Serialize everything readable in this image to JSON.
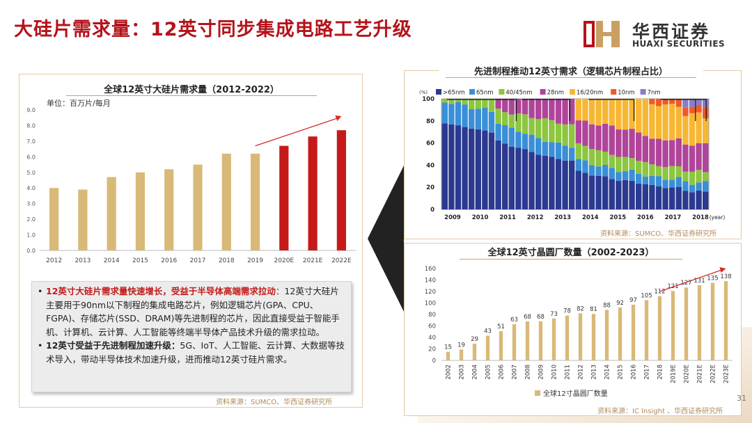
{
  "slide": {
    "title": "大硅片需求量：12英寸同步集成电路工艺升级",
    "page_number": "31"
  },
  "logo": {
    "cn": "华西证券",
    "en": "HUAXI SECURITIES",
    "mark": "华西证券 logo mark"
  },
  "colors": {
    "accent_red": "#b5121b",
    "bar_gold": "#d9b978",
    "bar_red": "#c61a1a",
    "arrow_red": "#d42b2b"
  },
  "left_panel": {
    "title": "全球12英寸大硅片需求量（2012-2022）",
    "source": "资料来源：SUMCO、华西证券研究所"
  },
  "textbox": {
    "b1_red": "12英寸大硅片需求量快速增长，受益于半导体高端需求拉动",
    "b1_red2": "：",
    "b1_text": "12英寸大硅片主要用于90nm以下制程的集成电路芯片，例如逻辑芯片(GPA、CPU、FGPA)、存储芯片(SSD、DRAM)等先进制程的芯片，因此直接受益于智能手机、计算机、云计算、人工智能等终端半导体产品技术升级的需求拉动。",
    "b2_bold": "12英寸受益于先进制程加速升级：",
    "b2_text": "5G、IoT、人工智能、云计算、大数据等技术导入，带动半导体技术加速升级，进而推动12英寸硅片需求。"
  },
  "top_right_panel": {
    "title": "先进制程推动12英寸需求（逻辑芯片制程占比）",
    "source": "资料来源：SUMCO、华西证券研究所"
  },
  "bottom_right_panel": {
    "title": "全球12英寸晶圆厂数量（2002-2023）",
    "source": "资料来源：IC Insight 、华西证券研究所"
  },
  "chart_data": [
    {
      "type": "bar",
      "unit_label": "单位：百万片/每月",
      "categories": [
        "2012",
        "2013",
        "2014",
        "2015",
        "2016",
        "2017",
        "2018",
        "2019",
        "2020E",
        "2021E",
        "2022E"
      ],
      "values": [
        4.0,
        3.9,
        4.7,
        5.0,
        5.2,
        5.5,
        6.2,
        6.2,
        6.7,
        7.3,
        7.7
      ],
      "forecast_from_index": 8,
      "ylim": [
        0,
        9
      ],
      "yticks": [
        "0.0",
        "1.0",
        "2.0",
        "3.0",
        "4.0",
        "5.0",
        "6.0",
        "7.0",
        "8.0",
        "9.0"
      ],
      "grid": false,
      "trend_arrow": true
    },
    {
      "type": "bar",
      "stacked": true,
      "percent": true,
      "y_unit": "(%)",
      "x_unit": "(year)",
      "ylim": [
        0,
        100
      ],
      "yticks": [
        "0",
        "20",
        "40",
        "60",
        "80",
        "100"
      ],
      "xticks": [
        "2009",
        "2010",
        "2011",
        "2012",
        "2013",
        "2014",
        "2015",
        "2016",
        "2017",
        "2018"
      ],
      "legend_position": "top",
      "series": [
        {
          "name": ">65nm",
          "color": "#2b3990",
          "start": 78,
          "end": 15
        },
        {
          "name": "65nm",
          "color": "#3a8fd8",
          "start": 20,
          "end": 8
        },
        {
          "name": "40/45nm",
          "color": "#8dc63f",
          "start": 2,
          "peak": 22,
          "end": 10
        },
        {
          "name": "28nm",
          "color": "#b0449a",
          "start": 0,
          "peak": 35,
          "end": 25
        },
        {
          "name": "16/20nm",
          "color": "#f7b733",
          "start": 0,
          "peak": 42,
          "end": 25
        },
        {
          "name": "10nm",
          "color": "#ef5a28",
          "start": 0,
          "end": 8
        },
        {
          "name": "7nm",
          "color": "#8b7cc8",
          "start": 0,
          "end": 8
        }
      ]
    },
    {
      "type": "bar",
      "legend": [
        "全球12寸晶圆厂数量"
      ],
      "categories": [
        "2002",
        "2003",
        "2004",
        "2005",
        "2006",
        "2007",
        "2008",
        "2009",
        "2010",
        "2011",
        "2012",
        "2013",
        "2014",
        "2015",
        "2016",
        "2017",
        "2018",
        "2019E",
        "2020E",
        "2021E",
        "2022E",
        "2023E"
      ],
      "values": [
        15,
        19,
        29,
        43,
        51,
        63,
        68,
        68,
        73,
        78,
        82,
        81,
        88,
        92,
        97,
        105,
        112,
        121,
        127,
        131,
        135,
        138
      ],
      "value_labels": [
        "15",
        "19",
        "29",
        "43",
        "51",
        "63",
        "68",
        "68",
        "73",
        "78",
        "82",
        "81",
        "88",
        "92",
        "97",
        "105",
        "112",
        "121",
        "127",
        "131",
        "135",
        "138"
      ],
      "ylim": [
        0,
        160
      ],
      "yticks": [
        "0",
        "20",
        "40",
        "60",
        "80",
        "100",
        "120",
        "140",
        "160"
      ],
      "trend_arrow": true
    }
  ]
}
